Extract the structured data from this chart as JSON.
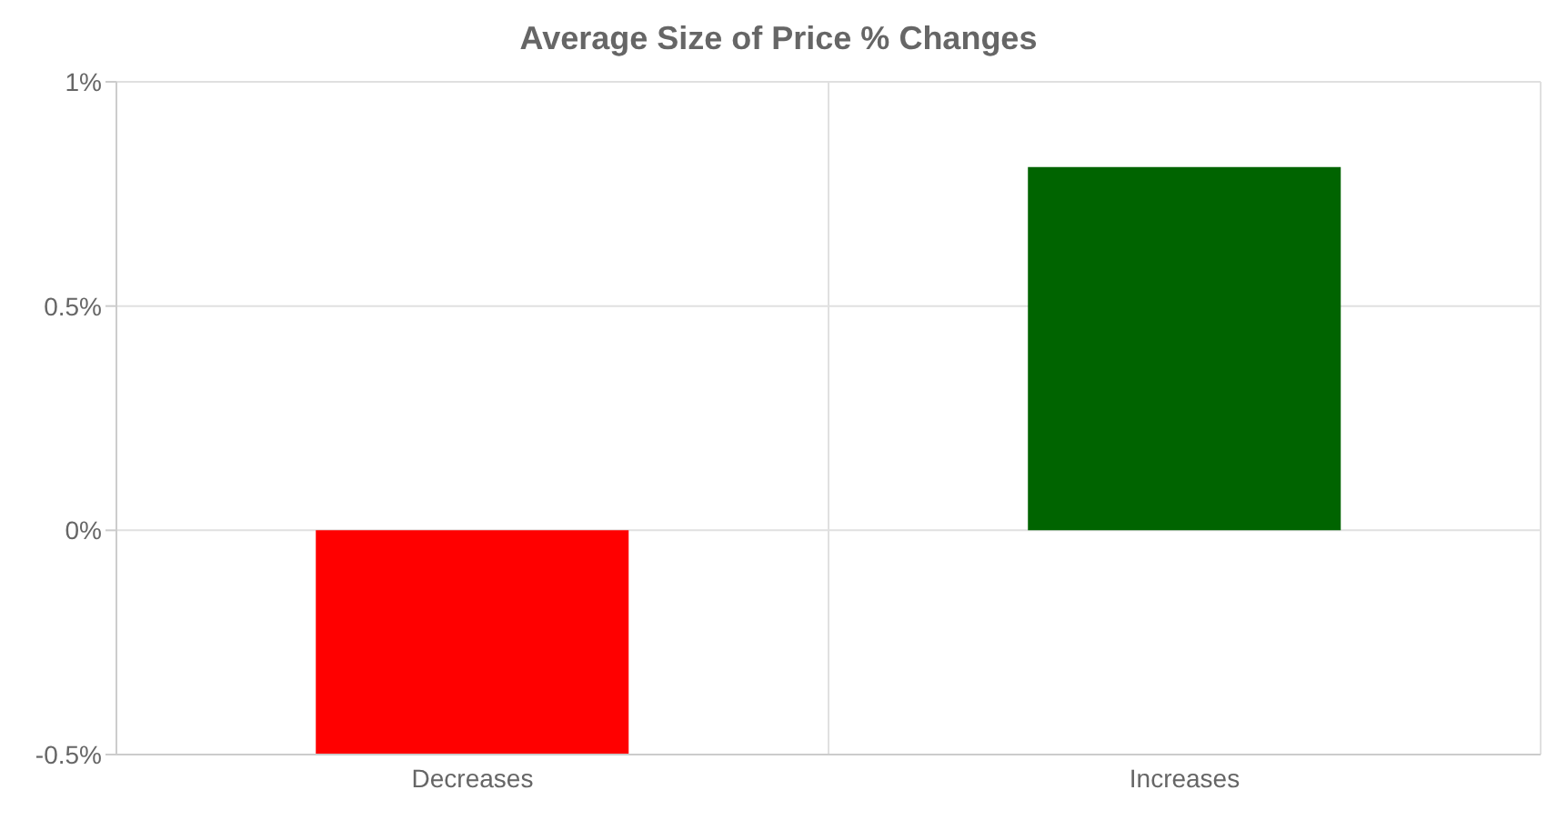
{
  "chart_data": {
    "type": "bar",
    "title": "Average Size of Price % Changes",
    "categories": [
      "Decreases",
      "Increases"
    ],
    "values": [
      -0.5,
      0.81
    ],
    "colors": [
      "#ff0000",
      "#006400"
    ],
    "ylim": [
      -0.5,
      1
    ],
    "yticks": [
      {
        "value": -0.5,
        "label": "-0.5%"
      },
      {
        "value": 0,
        "label": "0%"
      },
      {
        "value": 0.5,
        "label": "0.5%"
      },
      {
        "value": 1,
        "label": "1%"
      }
    ],
    "grid": true
  }
}
